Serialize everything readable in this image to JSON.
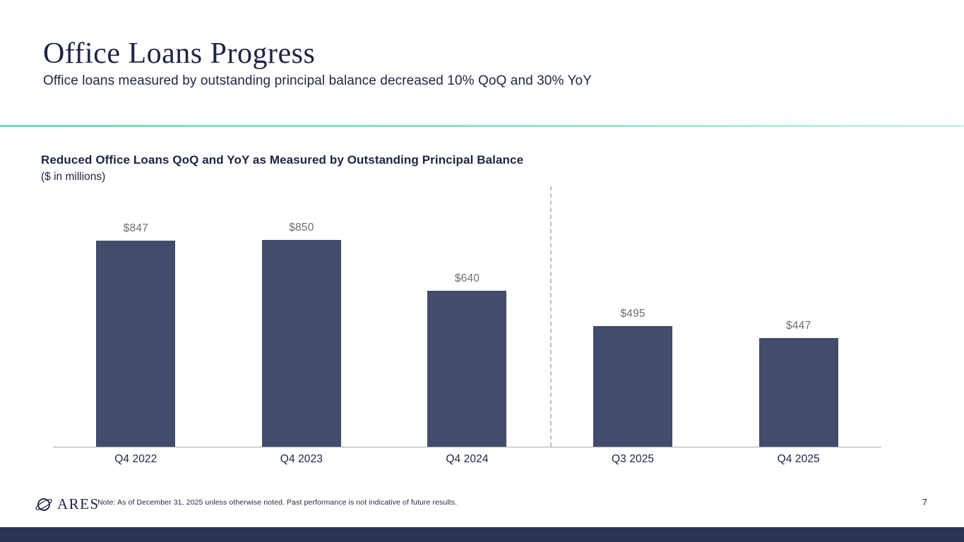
{
  "slide": {
    "title": "Office Loans Progress",
    "subtitle": "Office loans measured by outstanding principal balance decreased 10% QoQ and 30% YoY",
    "logo_text": "ARES",
    "footer_note": "Note: As of December 31, 2025 unless otherwise noted. Past performance is not indicative of future results.",
    "page_number": "7"
  },
  "chart_heading": {
    "title": "Reduced Office Loans QoQ and YoY as Measured by Outstanding Principal Balance",
    "units": "($ in millions)"
  },
  "chart_data": {
    "type": "bar",
    "title": "Reduced Office Loans QoQ and YoY as Measured by Outstanding Principal Balance",
    "categories": [
      "Q4 2022",
      "Q4 2023",
      "Q4 2024",
      "Q3 2025",
      "Q4 2025"
    ],
    "values": [
      847,
      850,
      640,
      495,
      447
    ],
    "value_labels": [
      "$847",
      "$850",
      "$640",
      "$495",
      "$447"
    ],
    "xlabel": "",
    "ylabel": "$ in millions",
    "ylim": [
      0,
      850
    ],
    "grid": false,
    "legend": false,
    "separator_after_category": "Q4 2024",
    "bar_color": "#434c6d"
  },
  "colors": {
    "accent_teal": "#7fe2c2",
    "bar_navy": "#434c6d",
    "title_navy": "#1d2444",
    "value_label_gray": "#6e6e6e",
    "axis_gray": "#ababab",
    "separator_gray": "#c0c0c0",
    "bottom_bar_navy": "#2c3254"
  }
}
